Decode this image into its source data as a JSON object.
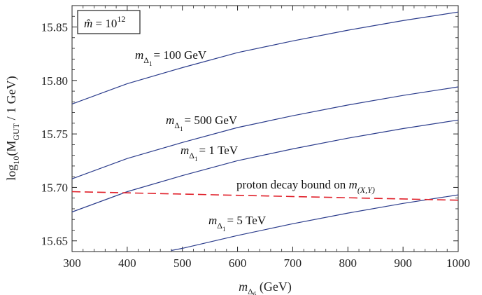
{
  "chart_data": {
    "type": "line",
    "xlim": [
      300,
      1000
    ],
    "ylim": [
      15.64,
      15.87
    ],
    "x_ticks": [
      "300",
      "400",
      "500",
      "600",
      "700",
      "800",
      "900",
      "1000"
    ],
    "y_ticks": [
      "15.65",
      "15.70",
      "15.75",
      "15.80",
      "15.85"
    ],
    "xlabel": {
      "base": "m",
      "sub": "Δ",
      "subsub": "6",
      "unit": " (GeV)"
    },
    "ylabel": {
      "pre": "log",
      "sub10": "10",
      "mid": "(M",
      "subgut": "GUT",
      "post": " / 1 GeV)"
    },
    "legend_box": {
      "hat_m": "m̂",
      "eq": " = 10",
      "exp": "12"
    },
    "colors": {
      "curve": "#2b3c8c",
      "bound": "#e0202a"
    },
    "series": [
      {
        "name": "m_Δ1 = 100 GeV",
        "x": [
          300,
          400,
          500,
          600,
          700,
          800,
          900,
          1000
        ],
        "y": [
          15.778,
          15.797,
          15.812,
          15.826,
          15.837,
          15.847,
          15.856,
          15.864
        ]
      },
      {
        "name": "m_Δ1 = 500 GeV",
        "x": [
          300,
          400,
          500,
          600,
          700,
          800,
          900,
          1000
        ],
        "y": [
          15.708,
          15.727,
          15.742,
          15.756,
          15.767,
          15.777,
          15.786,
          15.794
        ]
      },
      {
        "name": "m_Δ1 = 1 TeV",
        "x": [
          300,
          400,
          500,
          600,
          700,
          800,
          900,
          1000
        ],
        "y": [
          15.677,
          15.696,
          15.711,
          15.725,
          15.736,
          15.746,
          15.755,
          15.763
        ]
      },
      {
        "name": "m_Δ1 = 5 TeV",
        "x": [
          480,
          500,
          600,
          700,
          800,
          900,
          1000
        ],
        "y": [
          15.641,
          15.643,
          15.655,
          15.666,
          15.676,
          15.685,
          15.693
        ]
      },
      {
        "name": "proton decay bound on m_(X,Y)",
        "x": [
          300,
          1000
        ],
        "y": [
          15.696,
          15.688
        ]
      }
    ],
    "annotations": [
      {
        "base": "m",
        "sub": "Δ",
        "subsub": "1",
        "text": "= 100 GeV"
      },
      {
        "base": "m",
        "sub": "Δ",
        "subsub": "1",
        "text": "= 500 GeV"
      },
      {
        "base": "m",
        "sub": "Δ",
        "subsub": "1",
        "text": "= 1 TeV"
      },
      {
        "base": "m",
        "sub": "Δ",
        "subsub": "1",
        "text": "= 5 TeV"
      },
      {
        "text": "proton decay bound on ",
        "base": "m",
        "sub": "(X,Y)"
      }
    ]
  }
}
